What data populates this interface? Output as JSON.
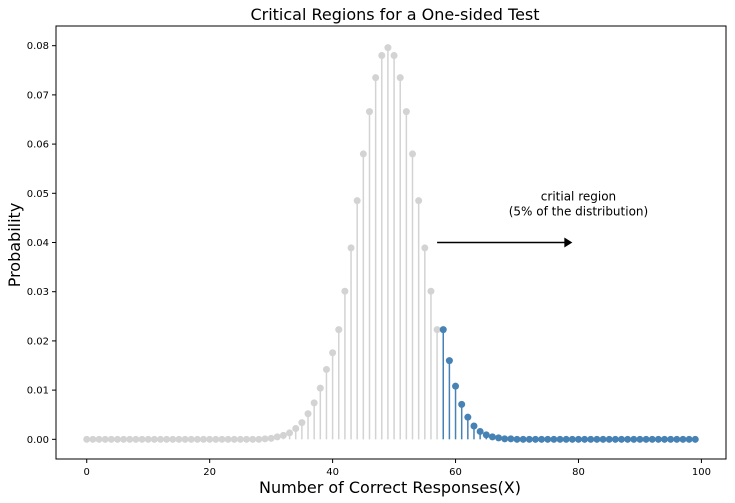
{
  "chart_data": {
    "type": "stem",
    "title": "Critical Regions for a One-sided Test",
    "xlabel": "Number of Correct Responses(X)",
    "ylabel": "Probability",
    "xlim": [
      -5,
      104
    ],
    "ylim": [
      -0.004,
      0.084
    ],
    "xticks": [
      0,
      20,
      40,
      60,
      80,
      100
    ],
    "yticks": [
      0.0,
      0.01,
      0.02,
      0.03,
      0.04,
      0.05,
      0.06,
      0.07,
      0.08
    ],
    "ytick_labels": [
      "0.00",
      "0.01",
      "0.02",
      "0.03",
      "0.04",
      "0.05",
      "0.06",
      "0.07",
      "0.08"
    ],
    "xtick_labels": [
      "0",
      "20",
      "40",
      "60",
      "80",
      "100"
    ],
    "grid": false,
    "critical_start": 58,
    "series": [
      {
        "x": [
          0,
          1,
          2,
          3,
          4,
          5,
          6,
          7,
          8,
          9,
          10,
          11,
          12,
          13,
          14,
          15,
          16,
          17,
          18,
          19,
          20,
          21,
          22,
          23,
          24,
          25,
          26,
          27,
          28,
          29,
          30,
          31,
          32,
          33,
          34,
          35,
          36,
          37,
          38,
          39,
          40,
          41,
          42,
          43,
          44,
          45,
          46,
          47,
          48,
          49,
          50,
          51,
          52,
          53,
          54,
          55,
          56,
          57
        ],
        "values": [
          0,
          0,
          0,
          0,
          0,
          0,
          0,
          0,
          0,
          0,
          0,
          0,
          0,
          0,
          0,
          0,
          0,
          0,
          0,
          0,
          0,
          0,
          0,
          0,
          0,
          0,
          0,
          0,
          0,
          0.0001,
          0.0002,
          0.0005,
          0.0008,
          0.0013,
          0.0022,
          0.0034,
          0.0052,
          0.0074,
          0.0104,
          0.0142,
          0.0176,
          0.0223,
          0.0301,
          0.0389,
          0.0485,
          0.058,
          0.0666,
          0.0735,
          0.078,
          0.0796,
          0.078,
          0.0735,
          0.0666,
          0.058,
          0.0485,
          0.0389,
          0.0301,
          0.0223
        ],
        "color": "#d3d3d3"
      },
      {
        "x": [
          58,
          59,
          60,
          61,
          62,
          63,
          64,
          65,
          66,
          67,
          68,
          69,
          70,
          71,
          72,
          73,
          74,
          75,
          76,
          77,
          78,
          79,
          80,
          81,
          82,
          83,
          84,
          85,
          86,
          87,
          88,
          89,
          90,
          91,
          92,
          93,
          94,
          95,
          96,
          97,
          98,
          99
        ],
        "values": [
          0.0223,
          0.016,
          0.0108,
          0.0071,
          0.0045,
          0.0027,
          0.0016,
          0.0009,
          0.0005,
          0.0003,
          0.0001,
          0.0001,
          0,
          0,
          0,
          0,
          0,
          0,
          0,
          0,
          0,
          0,
          0,
          0,
          0,
          0,
          0,
          0,
          0,
          0,
          0,
          0,
          0,
          0,
          0,
          0,
          0,
          0,
          0,
          0,
          0,
          0
        ],
        "color": "#4682b4"
      }
    ],
    "annotation": {
      "line1": "critial region",
      "line2": "(5% of the distribution)",
      "arrow_from": [
        57,
        0.04
      ],
      "arrow_to": [
        79,
        0.04
      ],
      "text_anchor_x": 80,
      "text_anchor_y1": 0.0485,
      "text_anchor_y2": 0.0455
    }
  }
}
